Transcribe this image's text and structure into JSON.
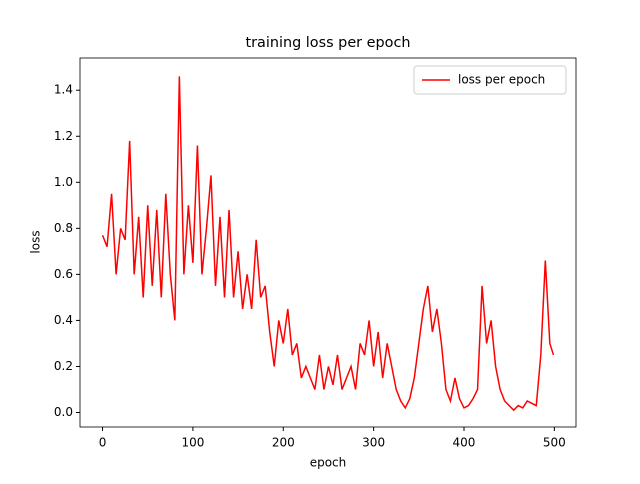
{
  "chart_data": {
    "type": "line",
    "title": "training loss per epoch",
    "x_label": "epoch",
    "y_label": "loss",
    "x": [
      0,
      5,
      10,
      15,
      20,
      25,
      30,
      35,
      40,
      45,
      50,
      55,
      60,
      65,
      70,
      75,
      80,
      85,
      90,
      95,
      100,
      105,
      110,
      115,
      120,
      125,
      130,
      135,
      140,
      145,
      150,
      155,
      160,
      165,
      170,
      175,
      180,
      185,
      190,
      195,
      200,
      205,
      210,
      215,
      220,
      225,
      230,
      235,
      240,
      245,
      250,
      255,
      260,
      265,
      270,
      275,
      280,
      285,
      290,
      295,
      300,
      305,
      310,
      315,
      320,
      325,
      330,
      335,
      340,
      345,
      350,
      355,
      360,
      365,
      370,
      375,
      380,
      385,
      390,
      395,
      400,
      405,
      410,
      415,
      420,
      425,
      430,
      435,
      440,
      445,
      450,
      455,
      460,
      465,
      470,
      475,
      480,
      485,
      490,
      495,
      499
    ],
    "series": [
      {
        "name": "loss per epoch",
        "color": "#ff0000",
        "values": [
          0.77,
          0.72,
          0.95,
          0.6,
          0.8,
          0.75,
          1.18,
          0.6,
          0.85,
          0.5,
          0.9,
          0.55,
          0.88,
          0.5,
          0.95,
          0.6,
          0.4,
          1.46,
          0.6,
          0.9,
          0.65,
          1.16,
          0.6,
          0.8,
          1.03,
          0.55,
          0.85,
          0.5,
          0.88,
          0.5,
          0.7,
          0.45,
          0.6,
          0.45,
          0.75,
          0.5,
          0.55,
          0.35,
          0.2,
          0.4,
          0.3,
          0.45,
          0.25,
          0.3,
          0.15,
          0.2,
          0.15,
          0.1,
          0.25,
          0.1,
          0.2,
          0.12,
          0.25,
          0.1,
          0.15,
          0.2,
          0.1,
          0.3,
          0.25,
          0.4,
          0.2,
          0.35,
          0.15,
          0.3,
          0.2,
          0.1,
          0.05,
          0.02,
          0.06,
          0.15,
          0.3,
          0.45,
          0.55,
          0.35,
          0.45,
          0.3,
          0.1,
          0.05,
          0.15,
          0.06,
          0.02,
          0.03,
          0.06,
          0.1,
          0.55,
          0.3,
          0.4,
          0.2,
          0.1,
          0.05,
          0.03,
          0.01,
          0.03,
          0.02,
          0.05,
          0.04,
          0.03,
          0.25,
          0.66,
          0.3,
          0.25
        ]
      }
    ],
    "xlim": [
      -24.95,
      523.95
    ],
    "ylim": [
      -0.063,
      1.54
    ],
    "xticks": [
      0,
      100,
      200,
      300,
      400,
      500
    ],
    "yticks": [
      {
        "value": 0,
        "label": "0.0"
      },
      0.2,
      0.4,
      0.6,
      0.8,
      {
        "value": 1,
        "label": "1.0"
      },
      1.2,
      1.4
    ],
    "legend": "upper right"
  }
}
